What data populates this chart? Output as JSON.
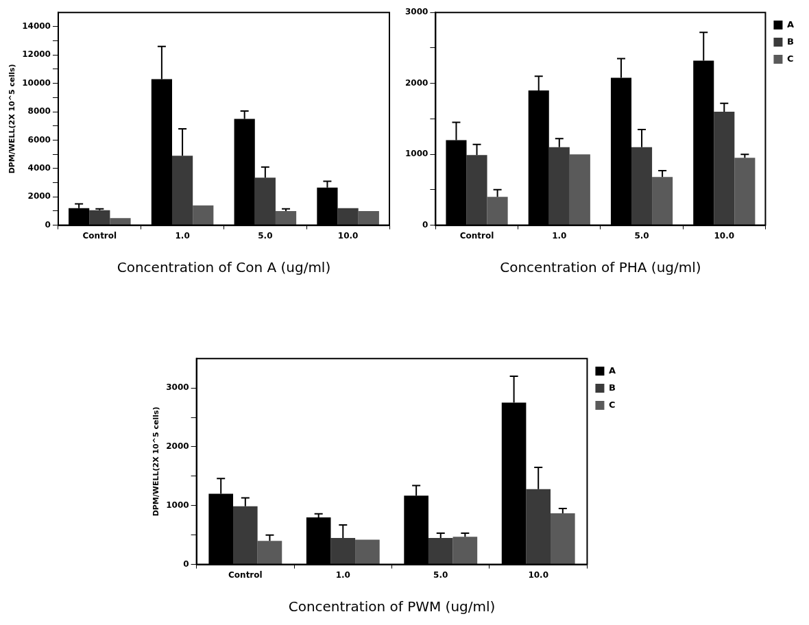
{
  "chart_data": [
    {
      "type": "bar",
      "xlabel": "Concentration of Con A (ug/ml)",
      "ylabel": "DPM/WELL(2X 10^5 cells)",
      "categories": [
        "Control",
        "1.0",
        "5.0",
        "10.0"
      ],
      "series": [
        {
          "color": "#000000",
          "values": [
            1200,
            10300,
            7500,
            2650
          ],
          "errors": [
            [
              1200,
              1500
            ],
            [
              10300,
              12600
            ],
            [
              7500,
              8050
            ],
            [
              2650,
              3100
            ]
          ]
        },
        {
          "color": "#3a3a3a",
          "values": [
            1050,
            4900,
            3350,
            1200
          ],
          "errors": [
            [
              1050,
              1150
            ],
            [
              4900,
              6800
            ],
            [
              3350,
              4100
            ],
            null
          ]
        },
        {
          "color": "#5a5a5a",
          "values": [
            500,
            1400,
            1000,
            1000
          ],
          "errors": [
            null,
            null,
            [
              1000,
              1150
            ],
            null
          ]
        }
      ],
      "ylim": [
        0,
        15000
      ],
      "yticks": [
        0,
        {
          "value": 1000,
          "label": null
        },
        2000,
        {
          "value": 3000,
          "label": null
        },
        4000,
        {
          "value": 5000,
          "label": null
        },
        6000,
        {
          "value": 7000,
          "label": null
        },
        8000,
        {
          "value": 9000,
          "label": null
        },
        10000,
        {
          "value": 11000,
          "label": null
        },
        12000,
        {
          "value": 13000,
          "label": null
        },
        14000
      ],
      "legend": false
    },
    {
      "type": "bar",
      "xlabel": "Concentration of PHA (ug/ml)",
      "categories": [
        "Control",
        "1.0",
        "5.0",
        "10.0"
      ],
      "series": [
        {
          "name": "A",
          "color": "#000000",
          "values": [
            1200,
            1900,
            2080,
            2320
          ],
          "errors": [
            [
              1200,
              1450
            ],
            [
              1900,
              2100
            ],
            [
              2080,
              2350
            ],
            [
              2320,
              2720
            ]
          ]
        },
        {
          "name": "B",
          "color": "#3a3a3a",
          "values": [
            990,
            1100,
            1100,
            1600
          ],
          "errors": [
            [
              990,
              1140
            ],
            [
              1100,
              1220
            ],
            [
              1100,
              1350
            ],
            [
              1600,
              1720
            ]
          ]
        },
        {
          "name": "C",
          "color": "#5a5a5a",
          "values": [
            400,
            1000,
            680,
            950
          ],
          "errors": [
            [
              400,
              500
            ],
            null,
            [
              680,
              770
            ],
            [
              950,
              1000
            ]
          ]
        }
      ],
      "ylim": [
        0,
        3000
      ],
      "yticks": [
        0,
        {
          "value": 500,
          "label": null
        },
        1000,
        {
          "value": 1500,
          "label": null
        },
        2000,
        {
          "value": 2500,
          "label": null
        },
        3000
      ],
      "legend": "top right"
    },
    {
      "type": "bar",
      "xlabel": "Concentration of PWM (ug/ml)",
      "ylabel": "DPM/WELL(2X 10^5 cells)",
      "categories": [
        "Control",
        "1.0",
        "5.0",
        "10.0"
      ],
      "series": [
        {
          "name": "A",
          "color": "#000000",
          "values": [
            1200,
            800,
            1170,
            2750
          ],
          "errors": [
            [
              1200,
              1460
            ],
            [
              800,
              860
            ],
            [
              1170,
              1340
            ],
            [
              2750,
              3200
            ]
          ]
        },
        {
          "name": "B",
          "color": "#3a3a3a",
          "values": [
            990,
            450,
            450,
            1280
          ],
          "errors": [
            [
              990,
              1130
            ],
            [
              450,
              670
            ],
            [
              450,
              530
            ],
            [
              1280,
              1650
            ]
          ]
        },
        {
          "name": "C",
          "color": "#5a5a5a",
          "values": [
            400,
            420,
            470,
            870
          ],
          "errors": [
            [
              400,
              500
            ],
            null,
            [
              470,
              530
            ],
            [
              870,
              950
            ]
          ]
        }
      ],
      "ylim": [
        0,
        3500
      ],
      "yticks": [
        0,
        {
          "value": 500,
          "label": null
        },
        1000,
        {
          "value": 1500,
          "label": null
        },
        2000,
        {
          "value": 2500,
          "label": null
        },
        3000
      ],
      "legend": "top right"
    }
  ]
}
